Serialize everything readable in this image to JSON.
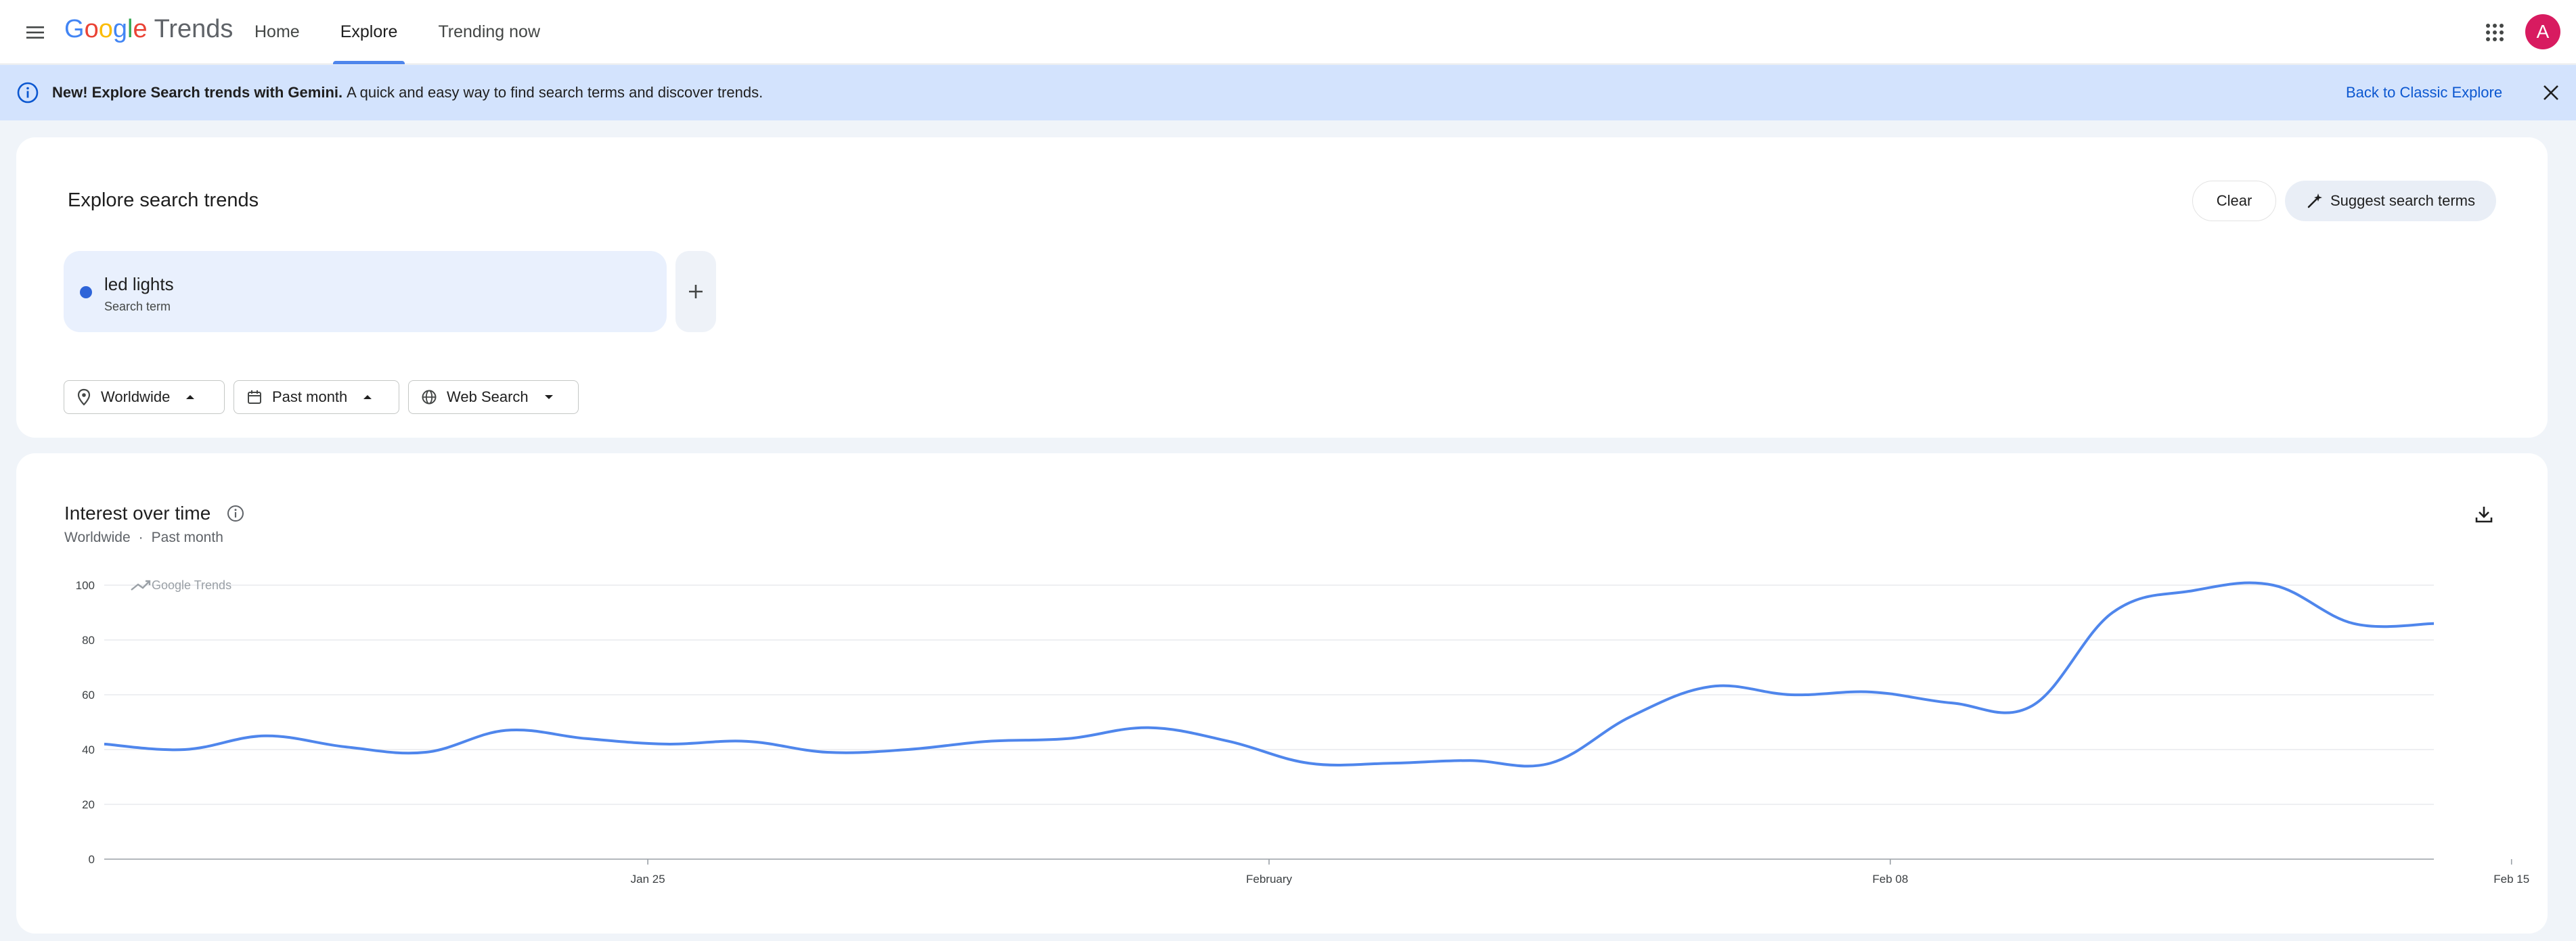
{
  "header": {
    "logo_google": "Google",
    "logo_product": "Trends",
    "nav": [
      {
        "label": "Home",
        "active": false
      },
      {
        "label": "Explore",
        "active": true
      },
      {
        "label": "Trending now",
        "active": false
      }
    ],
    "avatar_letter": "A"
  },
  "banner": {
    "bold_text": "New! Explore Search trends with Gemini.",
    "text": "A quick and easy way to find search terms and discover trends.",
    "link": "Back to Classic Explore"
  },
  "explore": {
    "title": "Explore search trends",
    "clear_label": "Clear",
    "suggest_label": "Suggest search terms",
    "term": {
      "name": "led lights",
      "type": "Search term",
      "color": "#2e64d8"
    },
    "filters": {
      "location": "Worldwide",
      "time": "Past month",
      "property": "Web Search"
    }
  },
  "interest": {
    "title": "Interest over time",
    "subtitle_location": "Worldwide",
    "subtitle_sep": "·",
    "subtitle_time": "Past month",
    "watermark": "Google Trends"
  },
  "chart_data": {
    "type": "line",
    "title": "Interest over time",
    "xlabel": "",
    "ylabel": "",
    "ylim": [
      0,
      100
    ],
    "yticks": [
      0,
      20,
      40,
      60,
      80,
      100
    ],
    "grid": true,
    "x_tick_labels": [
      {
        "label": "Jan 25",
        "index": 7
      },
      {
        "label": "February",
        "index": 15
      },
      {
        "label": "Feb 08",
        "index": 23
      },
      {
        "label": "Feb 15",
        "index": 31
      }
    ],
    "series": [
      {
        "color": "#4f86ec",
        "values": [
          42,
          40,
          45,
          41,
          39,
          47,
          44,
          42,
          43,
          39,
          40,
          43,
          44,
          48,
          43,
          35,
          35,
          36,
          35,
          52,
          63,
          60,
          61,
          57,
          56,
          90,
          98,
          100,
          86,
          86
        ]
      }
    ]
  }
}
